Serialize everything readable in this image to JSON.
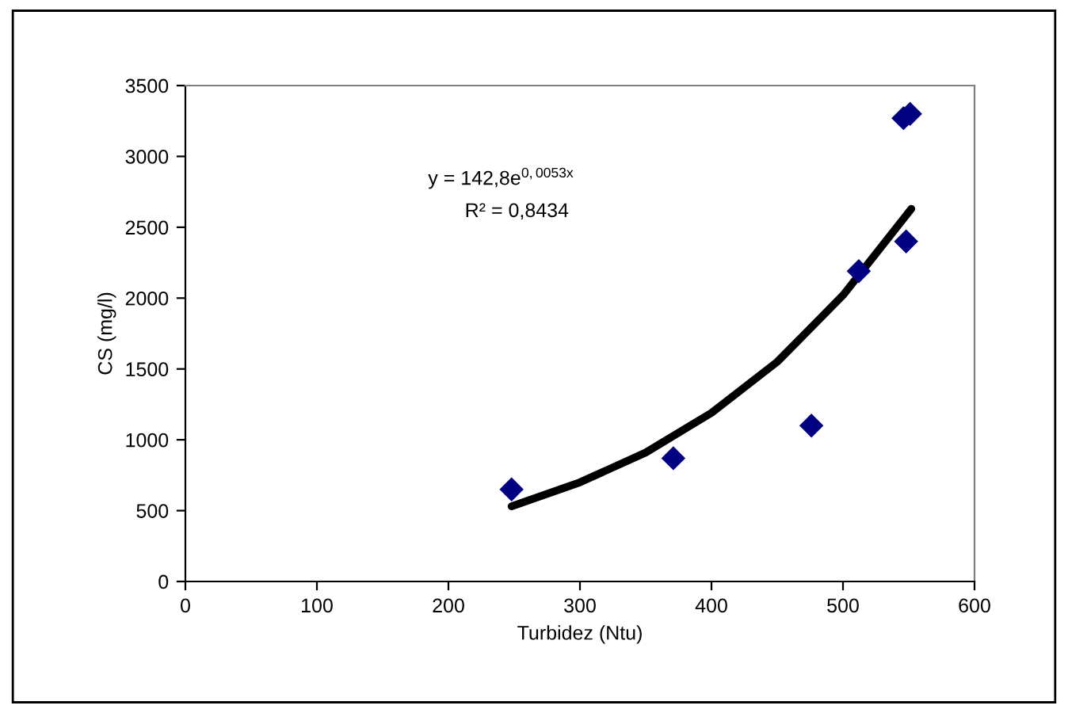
{
  "chart_data": {
    "type": "scatter",
    "xlabel": "Turbidez (Ntu)",
    "ylabel": "CS (mg/l)",
    "series": [
      {
        "color": "#000080",
        "marker": "diamond",
        "x": [
          248,
          371,
          476,
          512,
          546,
          551,
          548
        ],
        "values": [
          650,
          870,
          1100,
          2190,
          3270,
          3300,
          2400
        ]
      },
      {
        "type": "line",
        "color": "#000000",
        "marker": "none",
        "line_style": "solid",
        "x": [
          248,
          300,
          350,
          400,
          450,
          500,
          552
        ],
        "values": [
          530,
          700,
          910,
          1190,
          1550,
          2020,
          2630
        ]
      }
    ],
    "annotations": [
      "y = 142,8e$^{0,0053x}$",
      "R² = 0,8434"
    ],
    "xlim": [
      0,
      600
    ],
    "xticks": [
      0,
      100,
      200,
      300,
      400,
      500,
      600
    ],
    "ylim": [
      0,
      3500
    ],
    "yticks": [
      0,
      500,
      1000,
      1500,
      2000,
      2500,
      3000,
      3500
    ],
    "grid": false,
    "legend": false
  }
}
